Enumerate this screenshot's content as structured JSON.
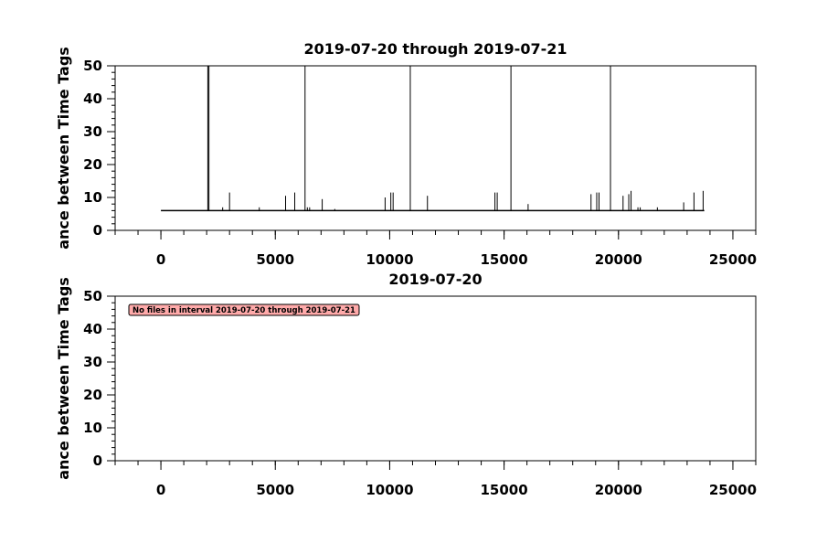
{
  "chart_data": [
    {
      "type": "line",
      "title": "2019-07-20 through 2019-07-21",
      "ylabel": "ance between Time Tags",
      "xlim": [
        -2000,
        26000
      ],
      "ylim": [
        0,
        50
      ],
      "x_ticks": [
        0,
        5000,
        10000,
        15000,
        20000,
        25000
      ],
      "y_ticks": [
        0,
        10,
        20,
        30,
        40,
        50
      ],
      "x_minor_step": 1000,
      "y_minor_step": 2,
      "baseline": {
        "x_start": 0,
        "x_end": 23750,
        "y": 6
      },
      "spikes": [
        {
          "x": 2050,
          "y": 50
        },
        {
          "x": 2100,
          "y": 50
        },
        {
          "x": 2700,
          "y": 7
        },
        {
          "x": 3000,
          "y": 11.5
        },
        {
          "x": 4300,
          "y": 7
        },
        {
          "x": 5450,
          "y": 10.5
        },
        {
          "x": 5850,
          "y": 11.5
        },
        {
          "x": 6300,
          "y": 50
        },
        {
          "x": 6400,
          "y": 7
        },
        {
          "x": 6500,
          "y": 7
        },
        {
          "x": 7050,
          "y": 9.5
        },
        {
          "x": 7600,
          "y": 6.5
        },
        {
          "x": 9800,
          "y": 10
        },
        {
          "x": 10050,
          "y": 11.5
        },
        {
          "x": 10150,
          "y": 11.5
        },
        {
          "x": 10900,
          "y": 50
        },
        {
          "x": 11650,
          "y": 10.5
        },
        {
          "x": 14600,
          "y": 11.5
        },
        {
          "x": 14700,
          "y": 11.5
        },
        {
          "x": 15300,
          "y": 50
        },
        {
          "x": 16050,
          "y": 8
        },
        {
          "x": 18800,
          "y": 11
        },
        {
          "x": 19050,
          "y": 11.5
        },
        {
          "x": 19150,
          "y": 11.5
        },
        {
          "x": 19650,
          "y": 50
        },
        {
          "x": 20200,
          "y": 10.5
        },
        {
          "x": 20450,
          "y": 11
        },
        {
          "x": 20550,
          "y": 12
        },
        {
          "x": 20850,
          "y": 7
        },
        {
          "x": 20950,
          "y": 7
        },
        {
          "x": 21700,
          "y": 7
        },
        {
          "x": 22850,
          "y": 8.5
        },
        {
          "x": 23300,
          "y": 11.5
        },
        {
          "x": 23700,
          "y": 12
        }
      ],
      "grid": false,
      "legend": "none",
      "color": "#000000"
    },
    {
      "type": "line",
      "title": "2019-07-20",
      "ylabel": "ance between Time Tags",
      "xlim": [
        -2000,
        26000
      ],
      "ylim": [
        0,
        50
      ],
      "x_ticks": [
        0,
        5000,
        10000,
        15000,
        20000,
        25000
      ],
      "y_ticks": [
        0,
        10,
        20,
        30,
        40,
        50
      ],
      "x_minor_step": 1000,
      "y_minor_step": 2,
      "annotation": {
        "text": "No files in interval 2019-07-20 through 2019-07-21",
        "background": "#ffaaaa",
        "placement": "top-left"
      },
      "grid": false,
      "legend": "none"
    }
  ]
}
